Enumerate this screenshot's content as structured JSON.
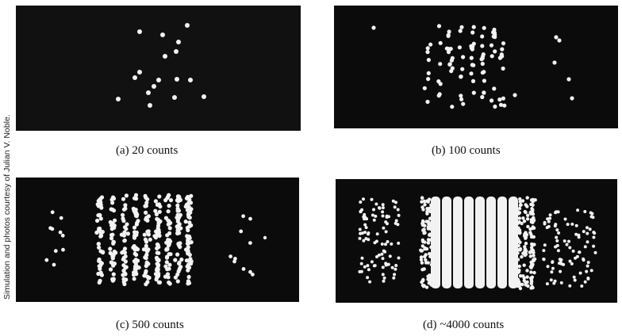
{
  "credit": "Simulation and photos courtesy of Julian V. Noble.",
  "panels": [
    {
      "id": "a",
      "caption": "(a) 20 counts"
    },
    {
      "id": "b",
      "caption": "(b) 100 counts"
    },
    {
      "id": "c",
      "caption": "(c) 500 counts"
    },
    {
      "id": "d",
      "caption": "(d) ~4000 counts"
    }
  ],
  "colors": {
    "background": "#0b0b0b",
    "dots": "#f2f2f2"
  }
}
